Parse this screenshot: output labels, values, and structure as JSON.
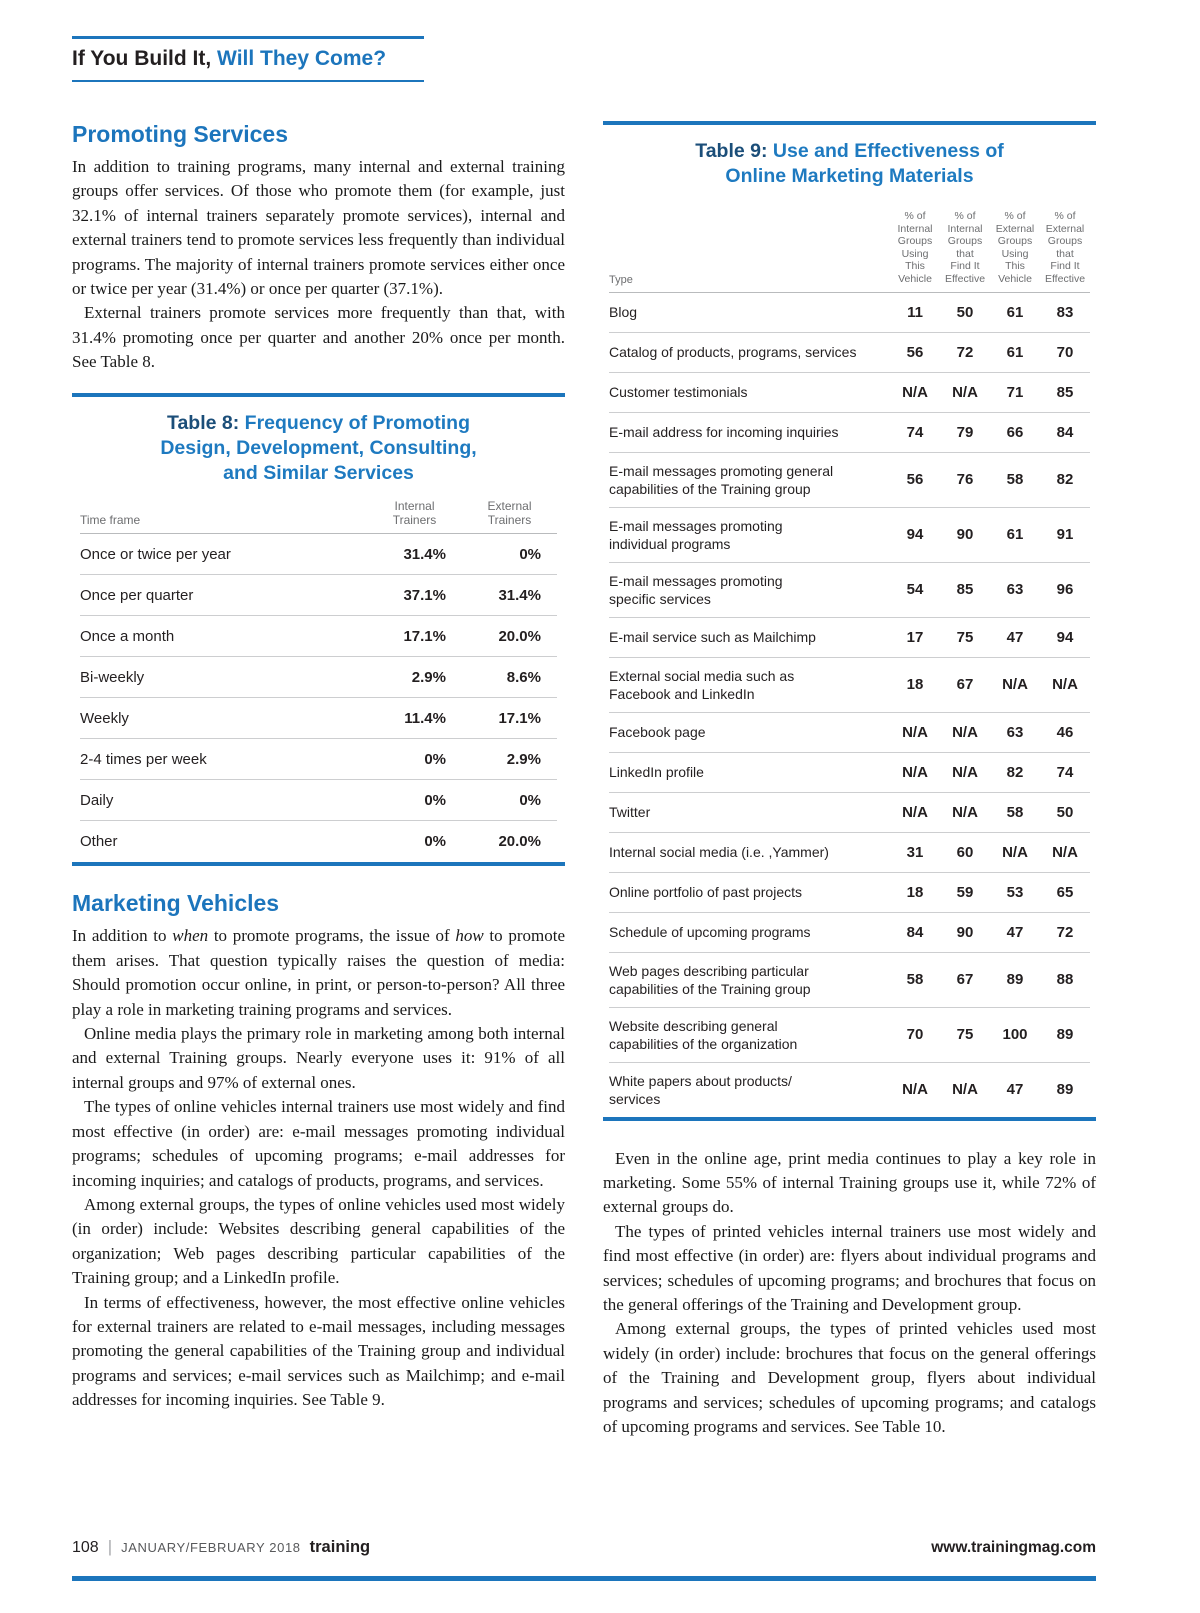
{
  "colors": {
    "accent_blue": "#1c75bc",
    "table_title_dark_blue": "#1b4e79",
    "body_text": "#1a1a1a",
    "muted_gray": "#6d6e70"
  },
  "header": {
    "title_black": "If You Build It,",
    "title_blue": " Will They Come?"
  },
  "left": {
    "promoting": {
      "heading": "Promoting Services",
      "p1": "In addition to training programs, many internal and external training groups offer services. Of those who promote them (for example, just 32.1% of internal trainers separately promote services), internal and external trainers tend to promote services less frequently than individual programs. The majority of internal trainers promote services either once or twice per year (31.4%) or once per quarter (37.1%).",
      "p2": "External trainers promote services more frequently than that, with 31.4% promoting once per quarter and another 20% once per month. See Table 8."
    },
    "table8": {
      "title_prefix": "Table 8:",
      "title_rest": " Frequency of Promoting Design, Development, Consulting, and Similar Services",
      "col_label": "Time frame",
      "col_internal": "Internal\nTrainers",
      "col_external": "External\nTrainers",
      "rows": [
        {
          "label": "Once or twice per year",
          "internal": "31.4%",
          "external": "0%"
        },
        {
          "label": "Once per quarter",
          "internal": "37.1%",
          "external": "31.4%"
        },
        {
          "label": "Once a month",
          "internal": "17.1%",
          "external": "20.0%"
        },
        {
          "label": "Bi-weekly",
          "internal": "2.9%",
          "external": "8.6%"
        },
        {
          "label": "Weekly",
          "internal": "11.4%",
          "external": "17.1%"
        },
        {
          "label": "2-4 times per week",
          "internal": "0%",
          "external": "2.9%"
        },
        {
          "label": "Daily",
          "internal": "0%",
          "external": "0%"
        },
        {
          "label": "Other",
          "internal": "0%",
          "external": "20.0%"
        }
      ]
    },
    "marketing": {
      "heading": "Marketing Vehicles",
      "p1_a": "In addition to ",
      "p1_when": "when",
      "p1_b": " to promote programs, the issue of ",
      "p1_how": "how",
      "p1_c": " to promote them arises. That question typically raises the question of media: Should promotion occur online, in print, or person-to-person? All three play a role in marketing training programs and services.",
      "p2": "Online media plays the primary role in marketing among both internal and external Training groups. Nearly everyone uses it: 91% of all internal groups and 97% of external ones.",
      "p3": "The types of online vehicles internal trainers use most widely and find most effective (in order) are: e-mail messages promoting individual programs; schedules of upcoming programs; e-mail addresses for incoming inquiries; and catalogs of products, programs, and services.",
      "p4": "Among external groups, the types of online vehicles used most widely (in order) include: Websites describing general capabilities of the organization; Web pages describing particular capabilities of the Training group; and a LinkedIn profile.",
      "p5": "In terms of effectiveness, however, the most effective online vehicles for external trainers are related to e-mail messages, including messages promoting the general capabilities of the Training group and individual programs and services; e-mail services such as Mailchimp; and e-mail addresses for incoming inquiries. See Table 9."
    }
  },
  "right": {
    "table9": {
      "title_prefix": "Table 9:",
      "title_rest": " Use and Effectiveness of Online Marketing Materials",
      "col_type": "Type",
      "headers": [
        "% of\nInternal\nGroups\nUsing\nThis\nVehicle",
        "% of\nInternal\nGroups\nthat\nFind It\nEffective",
        "% of\nExternal\nGroups\nUsing\nThis\nVehicle",
        "% of\nExternal\nGroups\nthat\nFind It\nEffective"
      ],
      "rows": [
        {
          "label": "Blog",
          "c1": "11",
          "c2": "50",
          "c3": "61",
          "c4": "83"
        },
        {
          "label": "Catalog of products, programs, services",
          "c1": "56",
          "c2": "72",
          "c3": "61",
          "c4": "70"
        },
        {
          "label": "Customer testimonials",
          "c1": "N/A",
          "c2": "N/A",
          "c3": "71",
          "c4": "85"
        },
        {
          "label": "E-mail address for incoming inquiries",
          "c1": "74",
          "c2": "79",
          "c3": "66",
          "c4": "84"
        },
        {
          "label": "E-mail messages promoting general\ncapabilities of the Training group",
          "c1": "56",
          "c2": "76",
          "c3": "58",
          "c4": "82"
        },
        {
          "label": "E-mail messages promoting\nindividual programs",
          "c1": "94",
          "c2": "90",
          "c3": "61",
          "c4": "91"
        },
        {
          "label": "E-mail messages promoting\nspecific services",
          "c1": "54",
          "c2": "85",
          "c3": "63",
          "c4": "96"
        },
        {
          "label": "E-mail service such as Mailchimp",
          "c1": "17",
          "c2": "75",
          "c3": "47",
          "c4": "94"
        },
        {
          "label": "External social media such as\nFacebook and LinkedIn",
          "c1": "18",
          "c2": "67",
          "c3": "N/A",
          "c4": "N/A"
        },
        {
          "label": "Facebook page",
          "c1": "N/A",
          "c2": "N/A",
          "c3": "63",
          "c4": "46"
        },
        {
          "label": "LinkedIn profile",
          "c1": "N/A",
          "c2": "N/A",
          "c3": "82",
          "c4": "74"
        },
        {
          "label": "Twitter",
          "c1": "N/A",
          "c2": "N/A",
          "c3": "58",
          "c4": "50"
        },
        {
          "label": "Internal social media (i.e. ,Yammer)",
          "c1": "31",
          "c2": "60",
          "c3": "N/A",
          "c4": "N/A"
        },
        {
          "label": "Online portfolio of past projects",
          "c1": "18",
          "c2": "59",
          "c3": "53",
          "c4": "65"
        },
        {
          "label": "Schedule of upcoming programs",
          "c1": "84",
          "c2": "90",
          "c3": "47",
          "c4": "72"
        },
        {
          "label": "Web pages describing particular\ncapabilities of the Training group",
          "c1": "58",
          "c2": "67",
          "c3": "89",
          "c4": "88"
        },
        {
          "label": "Website describing general\ncapabilities of the organization",
          "c1": "70",
          "c2": "75",
          "c3": "100",
          "c4": "89"
        },
        {
          "label": "White papers about products/\nservices",
          "c1": "N/A",
          "c2": "N/A",
          "c3": "47",
          "c4": "89"
        }
      ]
    },
    "p1": "Even in the online age, print media continues to play a key role in marketing. Some 55% of internal Training groups use it, while 72% of external groups do.",
    "p2": "The types of printed vehicles internal trainers use most widely and find most effective (in order) are: flyers about individual programs and services; schedules of upcoming programs; and brochures that focus on the general offerings of the Training and Development group.",
    "p3": "Among external groups, the types of printed vehicles used most widely (in order) include: brochures that focus on the general offerings of the Training and Development group, flyers about individual programs and services; schedules of upcoming programs; and catalogs of upcoming programs and services. See Table 10."
  },
  "footer": {
    "page_number": "108",
    "separator": "|",
    "issue": "JANUARY/FEBRUARY 2018",
    "magazine": "training",
    "website": "www.trainingmag.com"
  }
}
